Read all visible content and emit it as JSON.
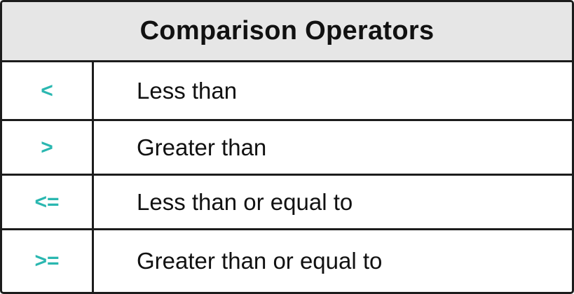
{
  "title": "Comparison Operators",
  "accent_color": "#2ab7b0",
  "rows": [
    {
      "operator": "<",
      "description": "Less than"
    },
    {
      "operator": ">",
      "description": "Greater than"
    },
    {
      "operator": "<=",
      "description": "Less than or equal to"
    },
    {
      "operator": ">=",
      "description": "Greater than or equal to"
    }
  ]
}
